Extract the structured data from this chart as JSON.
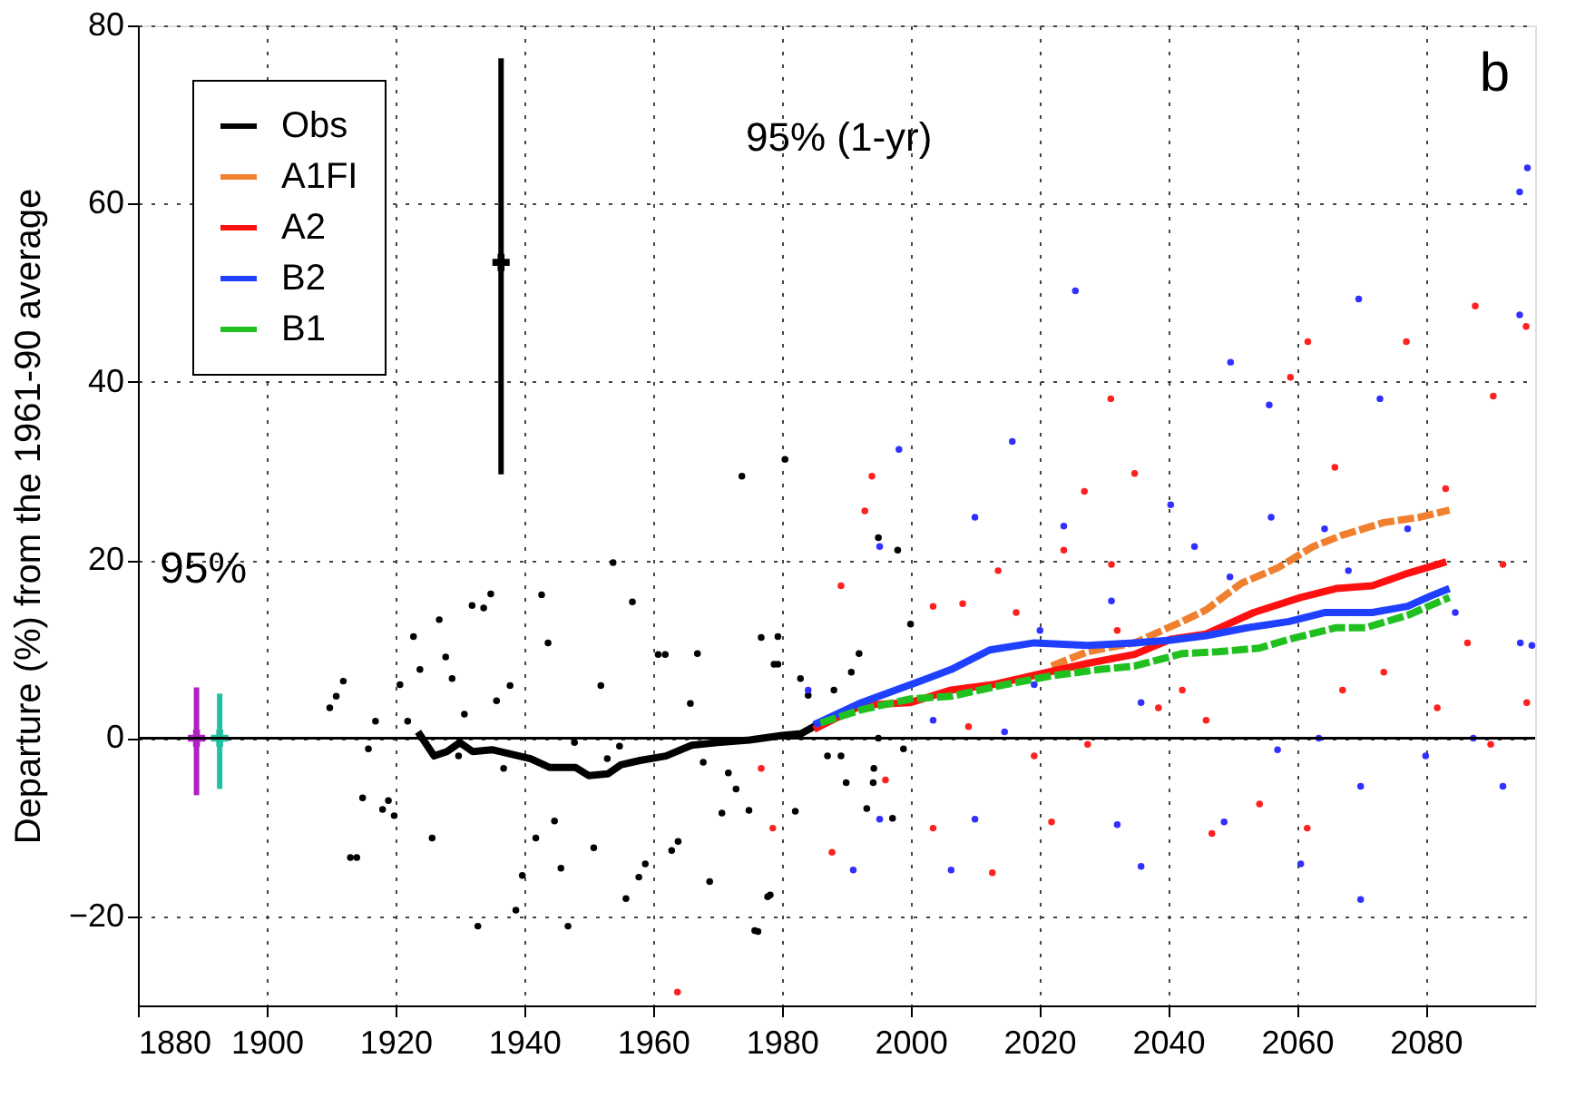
{
  "chart_data": {
    "type": "scatter",
    "ylabel": "Departure (%) from the 1961-90 average",
    "xlim": [
      1880,
      2097
    ],
    "ylim": [
      -30,
      80
    ],
    "xticks": [
      1880,
      1900,
      1920,
      1940,
      1960,
      1980,
      2000,
      2020,
      2040,
      2060,
      2080
    ],
    "yticks": [
      -20,
      0,
      20,
      40,
      60,
      80
    ],
    "grid": true,
    "legend": "top left",
    "marker": "circle",
    "ref_lines": [
      {
        "axis": "y",
        "value": 0,
        "color": "#000000",
        "line_style": "solid"
      }
    ],
    "annotations": [
      "b",
      "95% (1-yr)",
      "95%"
    ],
    "series": [
      {
        "color": "#000000",
        "x": [
          1909.8,
          1910.8,
          1911.9,
          1913,
          1914,
          1914.9,
          1915.8,
          1916.9,
          1918,
          1918.9,
          1919.8,
          1920.7,
          1921.9,
          1922.8,
          1923.8,
          1925.7,
          1926.8,
          1927.8,
          1928.8,
          1929.8,
          1930.7,
          1931.9,
          1932.8,
          1933.7,
          1934.8,
          1935.7,
          1936.8,
          1937.8,
          1938.7,
          1939.7,
          1941.8,
          1942.7,
          1943.7,
          1944.7,
          1945.7,
          1946.8,
          1947.8,
          1950.8,
          1951.9,
          1952.9,
          1953.8,
          1954.8,
          1955.8,
          1956.8,
          1957.8,
          1958.8,
          1960.8,
          1961.9,
          1962.9,
          1963.9,
          1965.8,
          1966.9,
          1967.8,
          1968.8,
          1970.7,
          1971.7,
          1972.9,
          1973.8,
          1974.9,
          1975.8,
          1976.3,
          1976.8,
          1977.8,
          1978.2,
          1978.8,
          1979.4,
          1979.4,
          1980.5,
          1982.1,
          1982.9,
          1984.1,
          1987.1,
          1988.1,
          1989.2,
          1990,
          1990.8,
          1992,
          1993.2,
          1994.2,
          1994.3,
          1995,
          1995,
          1997.2,
          1998,
          1998.9,
          2000
        ],
        "values": [
          3.4,
          4.7,
          6.4,
          -13.4,
          -13.4,
          -6.7,
          -1.2,
          1.9,
          -8,
          -7,
          -8.7,
          6,
          1.9,
          11.4,
          7.7,
          -11.2,
          13.3,
          9.1,
          6.7,
          -2,
          2.7,
          14.9,
          -21.1,
          14.6,
          16.2,
          4.2,
          -3.4,
          5.9,
          -19.3,
          -15.4,
          -11.2,
          16.1,
          10.7,
          -9.3,
          -14.6,
          -21.1,
          -0.5,
          -12.3,
          5.9,
          -2.3,
          19.7,
          -0.9,
          -18,
          15.3,
          -15.6,
          -14.1,
          9.4,
          9.4,
          -12.6,
          -11.6,
          3.9,
          9.5,
          -2.7,
          -16.1,
          -8.4,
          -3.9,
          -5.7,
          29.4,
          -8.1,
          -21.6,
          -21.7,
          11.3,
          -17.8,
          -17.6,
          8.3,
          11.4,
          8.3,
          31.3,
          -8.2,
          6.7,
          4.8,
          -2,
          5.4,
          -2,
          -5,
          7.4,
          9.5,
          -7.9,
          -5,
          -3.4,
          0,
          22.5,
          -9,
          21.1,
          -1.2,
          12.8
        ]
      },
      {
        "color": "#ff2020",
        "x": [
          1963.8,
          1976.8,
          1978.6,
          1987.8,
          1989.2,
          1992.9,
          1994,
          1996.1,
          2003.5,
          2003.5,
          2008.1,
          2009,
          2012.7,
          2013.6,
          2016.4,
          2019.2,
          2021.9,
          2023.8,
          2027,
          2027.5,
          2031.1,
          2031.2,
          2032.1,
          2034.8,
          2038.5,
          2042.2,
          2045.9,
          2046.8,
          2051.4,
          2054.2,
          2059,
          2061.6,
          2061.7,
          2065.9,
          2067.1,
          2073.5,
          2077,
          2081.8,
          2083.1,
          2086.5,
          2087.7,
          2090.1,
          2090.5,
          2092,
          2095.6,
          2095.7
        ],
        "values": [
          -28.5,
          -3.4,
          -10.1,
          -12.8,
          17.1,
          25.5,
          29.4,
          -4.7,
          14.8,
          -10.1,
          15.1,
          1.3,
          -15.1,
          18.8,
          14.1,
          -2,
          -9.4,
          21.1,
          27.7,
          -0.7,
          38.1,
          19.5,
          12.1,
          29.7,
          3.4,
          5.4,
          2,
          -10.7,
          null,
          -7.4,
          40.5,
          -10.1,
          44.5,
          30.4,
          5.4,
          7.4,
          44.5,
          3.4,
          28,
          10.7,
          48.5,
          -0.7,
          38.4,
          19.5,
          46.2,
          4
        ]
      },
      {
        "color": "#3030ff",
        "x": [
          1984.1,
          1991.1,
          1995.2,
          1995.2,
          1998.2,
          2003.5,
          2006.3,
          2010,
          2010,
          2014.6,
          2015.8,
          2019.2,
          2020.1,
          2023.8,
          2025.6,
          2031.2,
          2032.1,
          2035.8,
          2035.8,
          2040.4,
          2044.1,
          2048.7,
          2049.6,
          2049.7,
          2055.7,
          2056,
          2057,
          2060.6,
          2063.4,
          2064.3,
          2068,
          2069.6,
          2069.9,
          2069.9,
          2072.9,
          2077.2,
          2080,
          2084.6,
          2087.4,
          2092,
          2094.6,
          2094.6,
          2094.7,
          2095.8,
          2096.5
        ],
        "values": [
          5.4,
          -14.8,
          21.5,
          -9.1,
          32.4,
          2,
          -14.8,
          24.8,
          -9.1,
          0.7,
          33.3,
          6,
          12.1,
          23.8,
          50.2,
          15.4,
          -9.7,
          4,
          -14.4,
          26.2,
          21.5,
          -9.4,
          18.1,
          42.2,
          37.4,
          24.8,
          -1.3,
          -14.1,
          0,
          23.5,
          18.8,
          49.3,
          -5.4,
          -18.1,
          38.1,
          23.5,
          -2,
          14.1,
          0,
          -5.4,
          61.3,
          47.5,
          10.7,
          64,
          10.4
        ]
      },
      {
        "type": "line",
        "name": "Obs",
        "color": "#000000",
        "line_style": "solid",
        "marker": "none",
        "x": [
          1923.5,
          1926,
          1928,
          1930,
          1932,
          1935,
          1938,
          1941,
          1944,
          1948,
          1950,
          1953,
          1955,
          1958,
          1962,
          1966,
          1970,
          1975,
          1980,
          1983,
          1986
        ],
        "values": [
          0.7,
          -2,
          -1.5,
          -0.5,
          -1.5,
          -1.3,
          -1.8,
          -2.3,
          -3.3,
          -3.3,
          -4.2,
          -4,
          -3,
          -2.5,
          -2,
          -0.8,
          -0.5,
          -0.2,
          0.3,
          0.5,
          1.7
        ]
      },
      {
        "type": "line",
        "name": "A1FI",
        "color": "#f08030",
        "line_style": "dashed",
        "marker": "none",
        "x": [
          2021.9,
          2027.5,
          2034.8,
          2042.2,
          2045.9,
          2051.4,
          2057,
          2062.5,
          2067.1,
          2073.5,
          2079.1,
          2083.7
        ],
        "values": [
          8.1,
          9.7,
          10.7,
          13.1,
          14.4,
          17.4,
          19.1,
          21.5,
          22.8,
          24.2,
          24.8,
          25.6
        ]
      },
      {
        "type": "line",
        "name": "A2",
        "color": "#ff1010",
        "line_style": "solid",
        "marker": "none",
        "x": [
          1985,
          1992.4,
          2000,
          2006.3,
          2012.7,
          2020.1,
          2027.5,
          2034.8,
          2040.4,
          2045.9,
          2053.3,
          2060.6,
          2066.1,
          2071.7,
          2077.2,
          2083.2
        ],
        "values": [
          1,
          3.7,
          4,
          5.4,
          6,
          7.2,
          8.4,
          9.4,
          11.1,
          11.7,
          14.1,
          15.8,
          16.8,
          17.1,
          18.5,
          19.8
        ]
      },
      {
        "type": "line",
        "name": "B2",
        "color": "#2040ff",
        "line_style": "solid",
        "marker": "none",
        "x": [
          1985,
          1992.4,
          2000,
          2006.3,
          2012.3,
          2019.2,
          2027.5,
          2034.8,
          2040.4,
          2045.9,
          2052.3,
          2058.8,
          2064.3,
          2071.7,
          2077.2,
          2080.9,
          2083.7
        ],
        "values": [
          1.5,
          4,
          6,
          7.7,
          9.9,
          10.7,
          10.4,
          10.7,
          11,
          11.5,
          12.4,
          13.1,
          14.1,
          14.1,
          14.8,
          16,
          16.8
        ]
      },
      {
        "type": "line",
        "name": "B1",
        "color": "#20c020",
        "line_style": "dashed",
        "marker": "none",
        "x": [
          1986,
          1992.4,
          2000,
          2006.3,
          2014.6,
          2021.9,
          2029.3,
          2034.8,
          2042.2,
          2047.7,
          2054.1,
          2058.8,
          2066.1,
          2070.7,
          2077.2,
          2083.7
        ],
        "values": [
          1.7,
          3.2,
          4.4,
          4.7,
          6,
          7,
          7.7,
          8.1,
          9.5,
          9.7,
          10.1,
          11.1,
          12.4,
          12.4,
          13.8,
          15.8
        ]
      },
      {
        "color": "#000000",
        "marker": "cross",
        "x": [
          1936.4
        ],
        "values": [
          53.4
        ],
        "errors": [
          [
            29.6,
            76.3
          ]
        ]
      },
      {
        "color": "#b020c0",
        "marker": "cross",
        "x": [
          1889.1
        ],
        "values": [
          0
        ],
        "errors": [
          [
            -6.4,
            5.7
          ]
        ]
      },
      {
        "color": "#20c0a0",
        "marker": "cross",
        "x": [
          1892.7
        ],
        "values": [
          0
        ],
        "errors": [
          [
            -5.7,
            5.0
          ]
        ]
      }
    ]
  }
}
